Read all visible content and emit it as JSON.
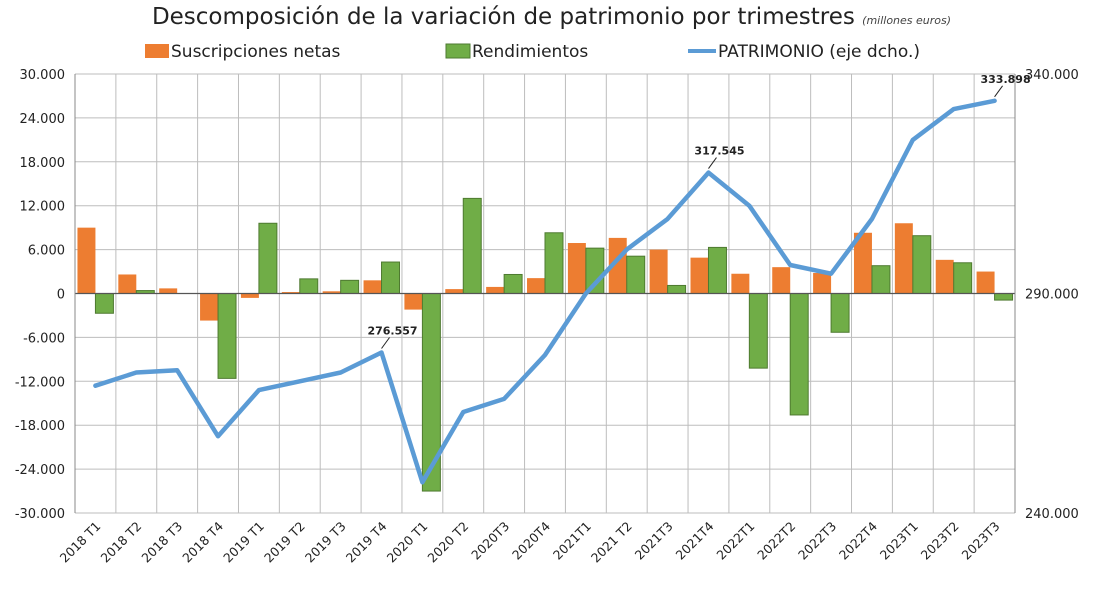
{
  "chart_data": {
    "type": "bar",
    "title": "Descomposición de la variación de patrimonio por trimestres",
    "subtitle": "(millones euros)",
    "categories": [
      "2018 T1",
      "2018 T2",
      "2018 T3",
      "2018 T4",
      "2019 T1",
      "2019 T2",
      "2019 T3",
      "2019 T4",
      "2020 T1",
      "2020 T2",
      "2020T3",
      "2020T4",
      "2021T1",
      "2021 T2",
      "2021T3",
      "2021T4",
      "2022T1",
      "2022T2",
      "2022T3",
      "2022T4",
      "2023T1",
      "2023T2",
      "2023T3"
    ],
    "left_axis": {
      "ylim": [
        -30000,
        30000
      ],
      "ticks": [
        -30000,
        -24000,
        -18000,
        -12000,
        -6000,
        0,
        6000,
        12000,
        18000,
        24000,
        30000
      ],
      "tick_labels": [
        "-30.000",
        "-24.000",
        "-18.000",
        "-12.000",
        "-6.000",
        "0",
        "6.000",
        "12.000",
        "18.000",
        "24.000",
        "30.000"
      ]
    },
    "right_axis": {
      "ylim": [
        240000,
        340000
      ],
      "ticks": [
        240000,
        290000,
        340000
      ],
      "tick_labels": [
        "240.000",
        "290.000",
        "340.000"
      ]
    },
    "series": [
      {
        "name": "Suscripciones netas",
        "type": "bar",
        "axis": "left",
        "color": "#ED7D31",
        "values": [
          9000,
          2600,
          700,
          -3700,
          -600,
          200,
          300,
          1800,
          -2200,
          600,
          900,
          2100,
          6900,
          7600,
          6000,
          4900,
          2700,
          3600,
          2800,
          8300,
          9600,
          4600,
          3000
        ]
      },
      {
        "name": "Rendimientos",
        "type": "bar",
        "axis": "left",
        "color": "#70AD47",
        "values": [
          -2700,
          400,
          0,
          -11600,
          9600,
          2000,
          1800,
          4300,
          -27000,
          13000,
          2600,
          8300,
          6200,
          5100,
          1100,
          6300,
          -10200,
          -16600,
          -5300,
          3800,
          7900,
          4200,
          -900
        ]
      },
      {
        "name": "PATRIMONIO (eje dcho.)",
        "type": "line",
        "axis": "right",
        "color": "#5B9BD5",
        "values": [
          269000,
          272000,
          272500,
          257500,
          268000,
          270000,
          272000,
          276557,
          247000,
          263000,
          266000,
          276000,
          290000,
          300000,
          307000,
          317545,
          310000,
          296500,
          294500,
          307000,
          325000,
          332000,
          333898
        ]
      }
    ],
    "annotations": [
      {
        "series": 2,
        "index": 7,
        "text": "276.557"
      },
      {
        "series": 2,
        "index": 15,
        "text": "317.545"
      },
      {
        "series": 2,
        "index": 22,
        "text": "333.898"
      }
    ],
    "grid": true,
    "legend_position": "top"
  }
}
